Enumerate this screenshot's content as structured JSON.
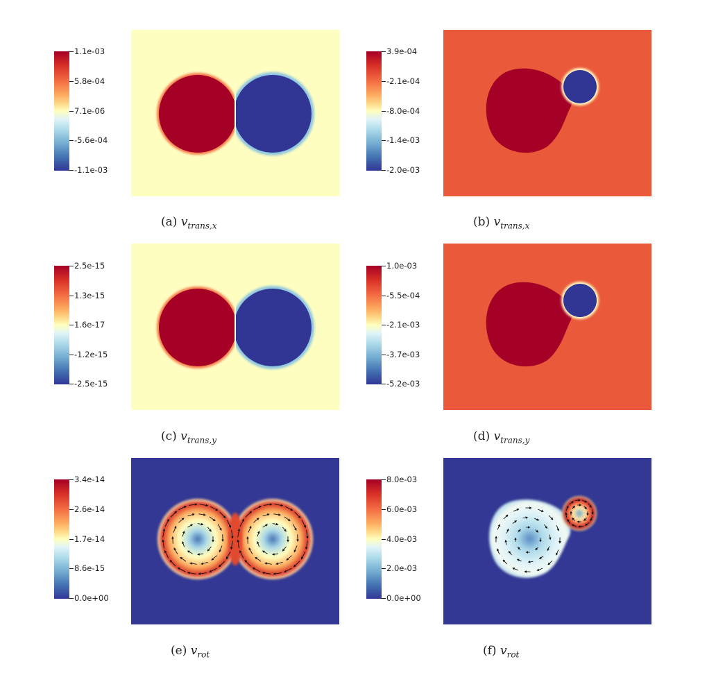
{
  "panels": [
    {
      "id": "a",
      "label": "(a)",
      "symbol": "v",
      "subscript": "trans,x",
      "colorbar_ticks": [
        "1.1e-03",
        "5.8e-04",
        "7.1e-06",
        "-5.6e-04",
        "-1.1e-03"
      ],
      "field": "trans_sym",
      "background": "#fefec1"
    },
    {
      "id": "b",
      "label": "(b)",
      "symbol": "v",
      "subscript": "trans,x",
      "colorbar_ticks": [
        "3.9e-04",
        "-2.1e-04",
        "-8.0e-04",
        "-1.4e-03",
        "-2.0e-03"
      ],
      "field": "trans_asym",
      "background": "#ea5a3a"
    },
    {
      "id": "c",
      "label": "(c)",
      "symbol": "v",
      "subscript": "trans,y",
      "colorbar_ticks": [
        "2.5e-15",
        "1.3e-15",
        "1.6e-17",
        "-1.2e-15",
        "-2.5e-15"
      ],
      "field": "trans_sym",
      "background": "#fefec1"
    },
    {
      "id": "d",
      "label": "(d)",
      "symbol": "v",
      "subscript": "trans,y",
      "colorbar_ticks": [
        "1.0e-03",
        "-5.5e-04",
        "-2.1e-03",
        "-3.7e-03",
        "-5.2e-03"
      ],
      "field": "trans_asym",
      "background": "#ea5a3a"
    },
    {
      "id": "e",
      "label": "(e)",
      "symbol": "v",
      "subscript": "rot",
      "colorbar_ticks": [
        "3.4e-14",
        "2.6e-14",
        "1.7e-14",
        "8.6e-15",
        "0.0e+00"
      ],
      "field": "rot_sym",
      "background": "#323893"
    },
    {
      "id": "f",
      "label": "(f)",
      "symbol": "v",
      "subscript": "rot",
      "colorbar_ticks": [
        "8.0e-03",
        "6.0e-03",
        "4.0e-03",
        "2.0e-03",
        "0.0e+00"
      ],
      "field": "rot_asym",
      "background": "#323893"
    }
  ]
}
